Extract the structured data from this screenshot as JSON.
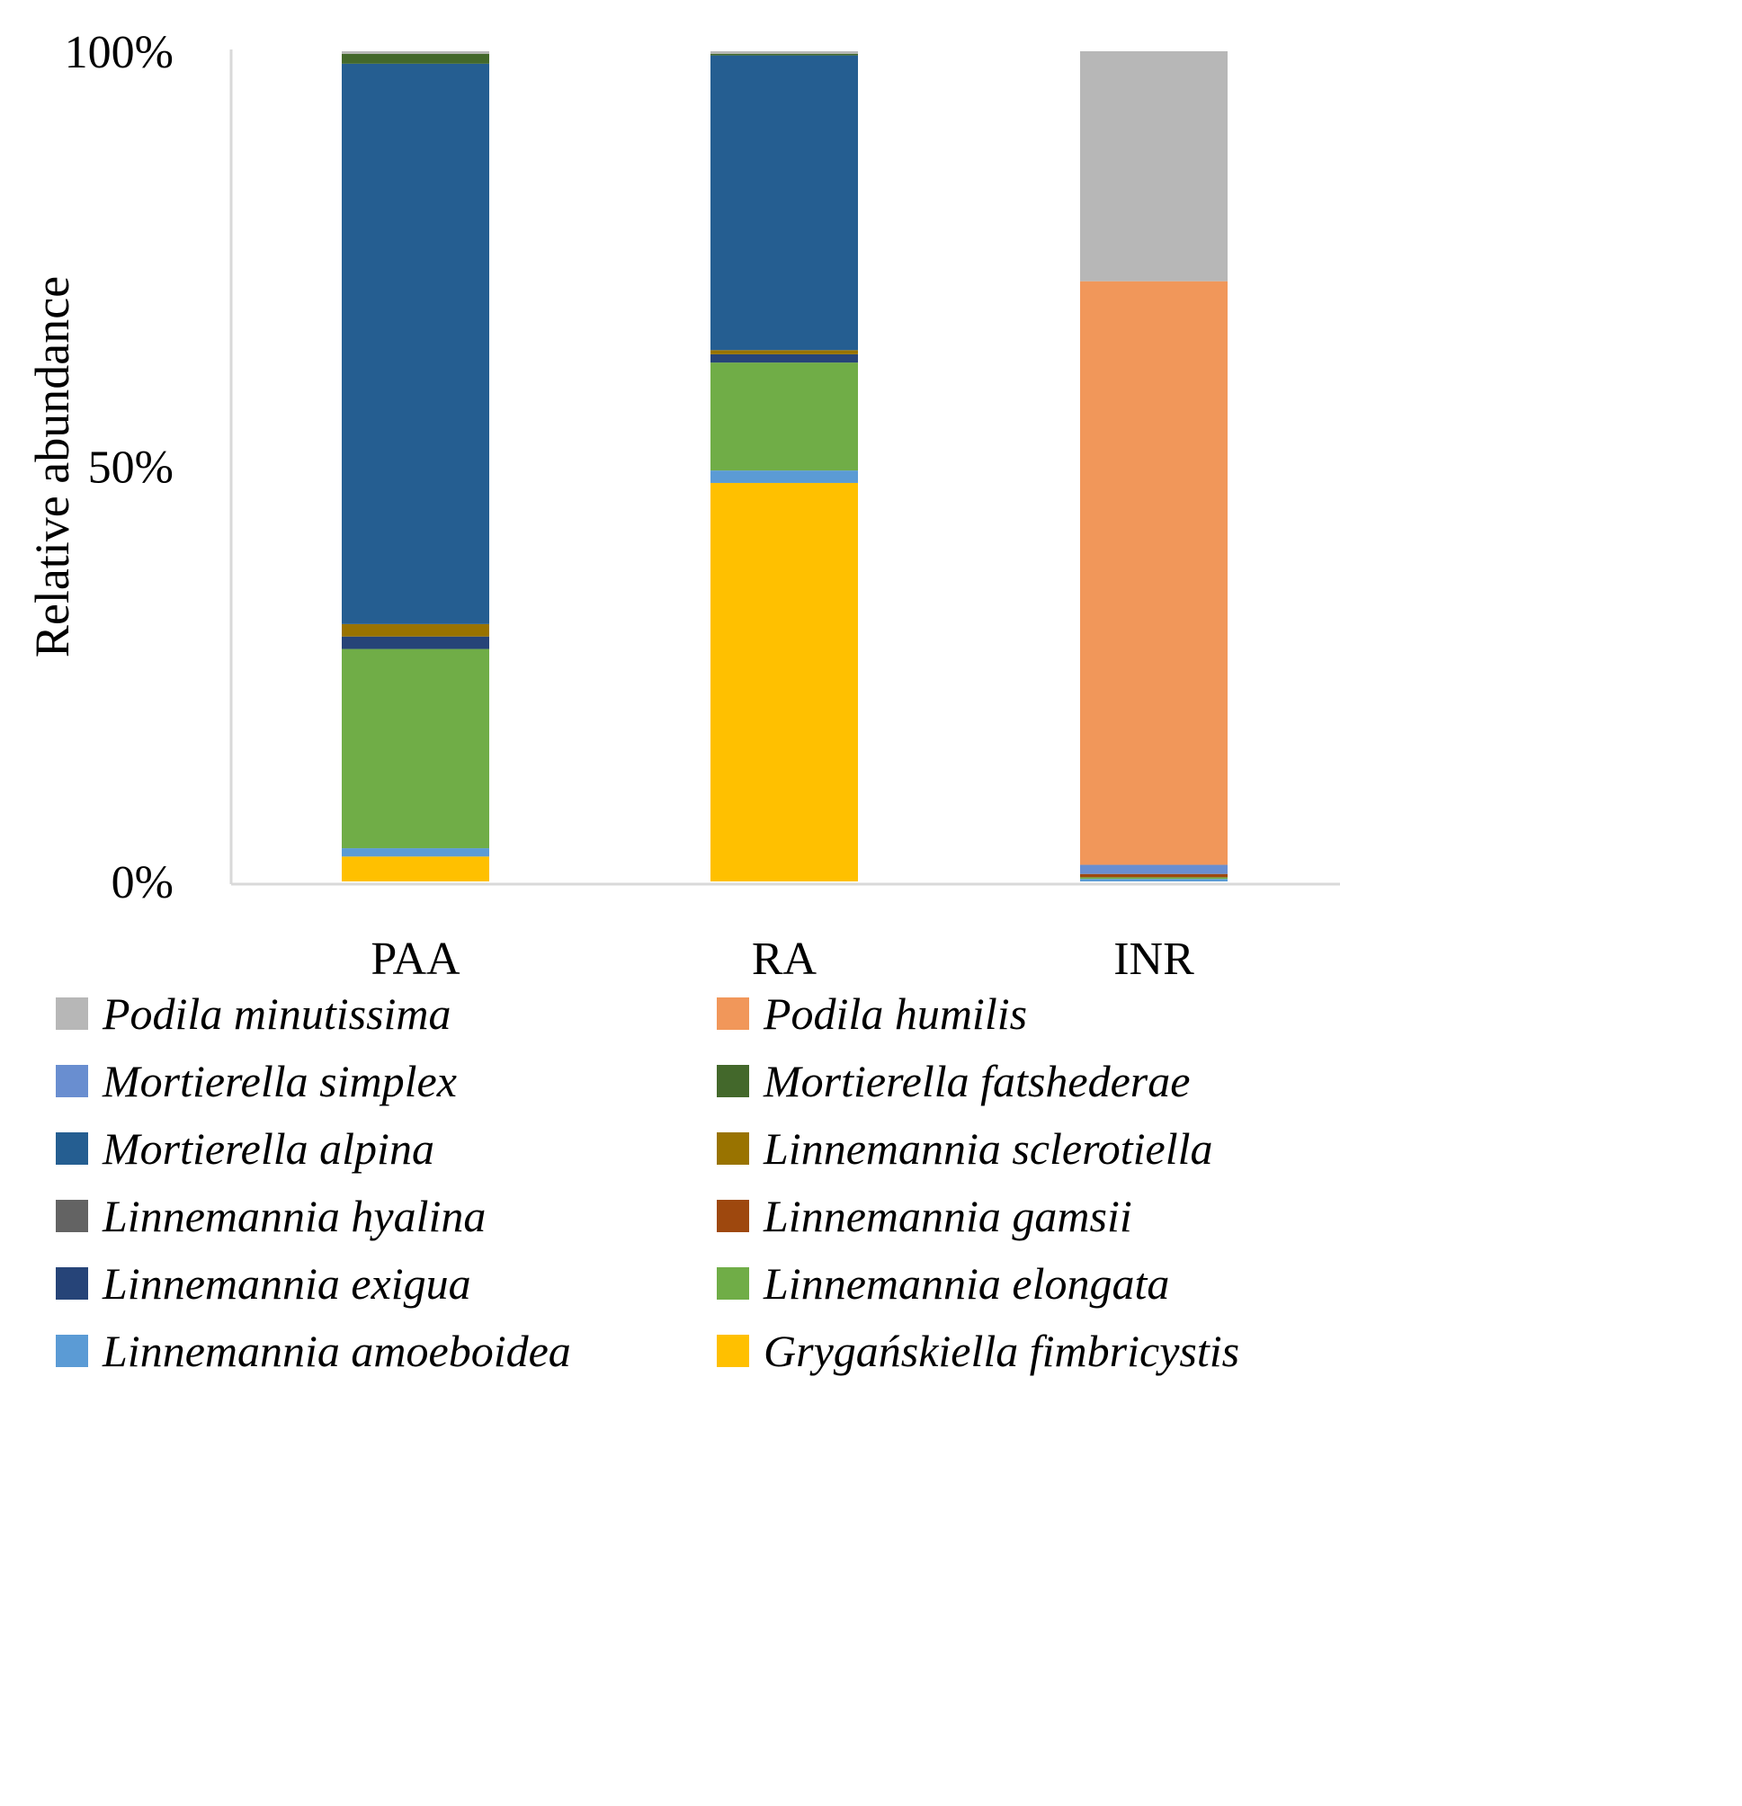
{
  "chart_data": {
    "type": "bar",
    "stacked": true,
    "title": "",
    "xlabel": "",
    "ylabel": "Relative abundance",
    "ylim": [
      0,
      100
    ],
    "y_ticks": [
      {
        "value": 0,
        "label": "0%"
      },
      {
        "value": 50,
        "label": "50%"
      },
      {
        "value": 100,
        "label": "100%"
      }
    ],
    "categories": [
      "PAA",
      "RA",
      "INR"
    ],
    "series": [
      {
        "name": "Grygańskiella fimbricystis",
        "color": "#FFC000",
        "values": [
          3.0,
          48.0,
          0.0
        ]
      },
      {
        "name": "Linnemannia amoeboidea",
        "color": "#5B9BD5",
        "values": [
          1.0,
          1.5,
          0.3
        ]
      },
      {
        "name": "Linnemannia elongata",
        "color": "#70AD47",
        "values": [
          24.0,
          13.0,
          0.2
        ]
      },
      {
        "name": "Linnemannia exigua",
        "color": "#264478",
        "values": [
          1.5,
          1.0,
          0.0
        ]
      },
      {
        "name": "Linnemannia gamsii",
        "color": "#9E480E",
        "values": [
          0.0,
          0.0,
          0.4
        ]
      },
      {
        "name": "Linnemannia hyalina",
        "color": "#636363",
        "values": [
          0.0,
          0.0,
          0.0
        ]
      },
      {
        "name": "Linnemannia sclerotiella",
        "color": "#997300",
        "values": [
          1.5,
          0.5,
          0.0
        ]
      },
      {
        "name": "Mortierella alpina",
        "color": "#255E91",
        "values": [
          67.5,
          35.5,
          0.0
        ]
      },
      {
        "name": "Mortierella fatshederae",
        "color": "#43682B",
        "values": [
          1.2,
          0.2,
          0.0
        ]
      },
      {
        "name": "Mortierella simplex",
        "color": "#698ED0",
        "values": [
          0.0,
          0.0,
          1.1
        ]
      },
      {
        "name": "Podila humilis",
        "color": "#F1975A",
        "values": [
          0.0,
          0.0,
          70.3
        ]
      },
      {
        "name": "Podila minutissima",
        "color": "#B7B7B7",
        "values": [
          0.3,
          0.3,
          27.7
        ]
      }
    ],
    "legend": {
      "position": "bottom",
      "columns": 2,
      "order": [
        "Podila minutissima",
        "Podila humilis",
        "Mortierella simplex",
        "Mortierella fatshederae",
        "Mortierella alpina",
        "Linnemannia sclerotiella",
        "Linnemannia hyalina",
        "Linnemannia gamsii",
        "Linnemannia exigua",
        "Linnemannia elongata",
        "Linnemannia amoeboidea",
        "Grygańskiella fimbricystis"
      ]
    },
    "grid": false
  }
}
